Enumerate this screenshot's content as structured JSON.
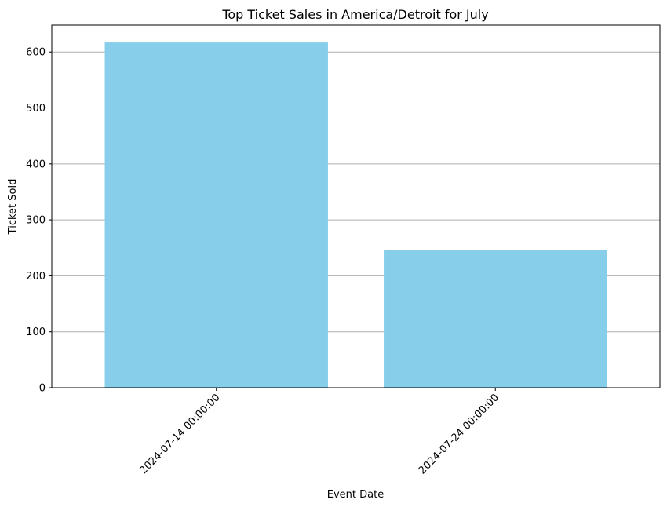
{
  "chart_data": {
    "type": "bar",
    "title": "Top Ticket Sales in America/Detroit for July",
    "xlabel": "Event Date",
    "ylabel": "Ticket Sold",
    "categories": [
      "2024-07-14 00:00:00",
      "2024-07-24 00:00:00"
    ],
    "values": [
      617,
      246
    ],
    "ylim": [
      0,
      648
    ],
    "yticks": [
      0,
      100,
      200,
      300,
      400,
      500,
      600
    ],
    "grid": "y",
    "bar_color": "#87CEEB",
    "grid_color": "#b0b0b0"
  }
}
